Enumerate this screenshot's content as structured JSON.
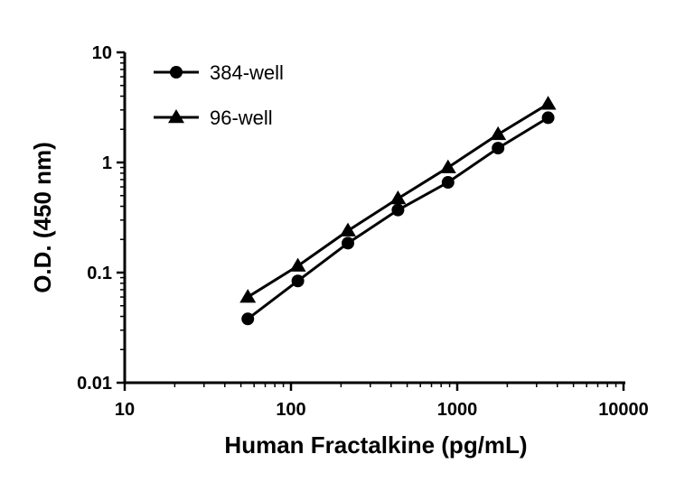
{
  "chart_data": {
    "type": "line",
    "xlabel": "Human Fractalkine (pg/mL)",
    "ylabel": "O.D. (450 nm)",
    "xscale": "log",
    "yscale": "log",
    "xlim": [
      10,
      10000
    ],
    "ylim": [
      0.01,
      10
    ],
    "x_tick_labels": [
      "10",
      "100",
      "1000",
      "10000"
    ],
    "y_tick_labels": [
      "0.01",
      "0.1",
      "1",
      "10"
    ],
    "legend_position": "top-left",
    "series": [
      {
        "name": "384-well",
        "marker": "circle",
        "color": "#000000",
        "x": [
          55,
          110,
          220,
          440,
          880,
          1760,
          3520
        ],
        "y": [
          0.038,
          0.084,
          0.185,
          0.37,
          0.66,
          1.35,
          2.55
        ]
      },
      {
        "name": "96-well",
        "marker": "triangle",
        "color": "#000000",
        "x": [
          55,
          110,
          220,
          440,
          880,
          1760,
          3520
        ],
        "y": [
          0.06,
          0.115,
          0.24,
          0.47,
          0.9,
          1.8,
          3.4
        ]
      }
    ]
  }
}
